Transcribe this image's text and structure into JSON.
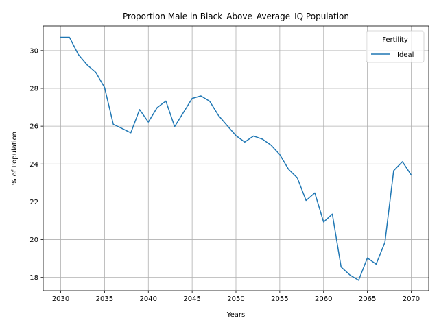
{
  "chart_data": {
    "type": "line",
    "title": "Proportion Male in Black_Above_Average_IQ Population",
    "xlabel": "Years",
    "ylabel": "% of Population",
    "xlim": [
      2028,
      2072
    ],
    "ylim": [
      17.3,
      31.3
    ],
    "x_ticks": [
      2030,
      2035,
      2040,
      2045,
      2050,
      2055,
      2060,
      2065,
      2070
    ],
    "y_ticks": [
      18,
      20,
      22,
      24,
      26,
      28,
      30
    ],
    "grid": true,
    "legend": {
      "title": "Fertility",
      "placement": "top-right"
    },
    "series": [
      {
        "name": "Ideal",
        "color": "#1f77b4",
        "x": [
          2030,
          2031,
          2032,
          2033,
          2034,
          2035,
          2036,
          2037,
          2038,
          2039,
          2040,
          2041,
          2042,
          2043,
          2044,
          2045,
          2046,
          2047,
          2048,
          2049,
          2050,
          2051,
          2052,
          2053,
          2054,
          2055,
          2056,
          2057,
          2058,
          2059,
          2060,
          2061,
          2062,
          2063,
          2064,
          2065,
          2066,
          2067,
          2068,
          2069,
          2070
        ],
        "y": [
          30.7,
          30.7,
          29.8,
          29.25,
          28.85,
          28.05,
          26.1,
          25.88,
          25.65,
          26.88,
          26.22,
          26.98,
          27.33,
          25.98,
          26.72,
          27.47,
          27.6,
          27.32,
          26.57,
          26.03,
          25.5,
          25.16,
          25.48,
          25.32,
          25.0,
          24.5,
          23.72,
          23.27,
          22.07,
          22.47,
          20.93,
          21.35,
          18.55,
          18.13,
          17.85,
          19.03,
          18.7,
          19.85,
          23.65,
          24.12,
          23.42
        ]
      }
    ]
  }
}
